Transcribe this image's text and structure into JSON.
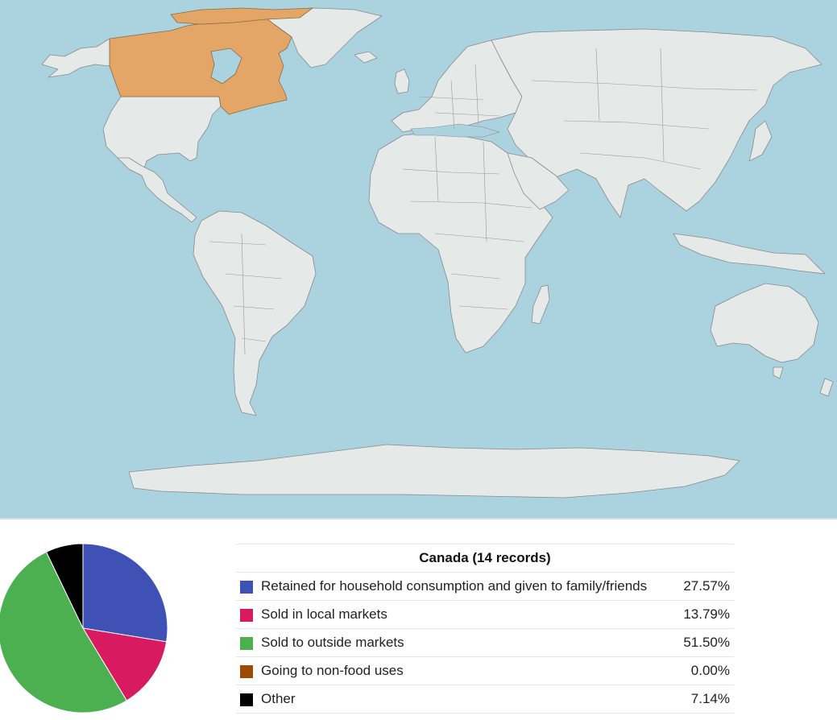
{
  "map": {
    "colors": {
      "ocean": "#aad3df",
      "land": "#e5e9e8",
      "border": "#8a8a8a",
      "highlight": "#e3a666"
    },
    "highlighted_country": "Canada"
  },
  "summary": {
    "title": "Canada (14 records)",
    "rows": [
      {
        "label": "Retained for household consumption and given to family/friends",
        "percent": "27.57%",
        "value": 27.57,
        "color": "#3f51b5"
      },
      {
        "label": "Sold in local markets",
        "percent": "13.79%",
        "value": 13.79,
        "color": "#d81b60"
      },
      {
        "label": "Sold to outside markets",
        "percent": "51.50%",
        "value": 51.5,
        "color": "#4caf50"
      },
      {
        "label": "Going to non-food uses",
        "percent": "0.00%",
        "value": 0.0,
        "color": "#9c4a00"
      },
      {
        "label": "Other",
        "percent": "7.14%",
        "value": 7.14,
        "color": "#000000"
      }
    ]
  }
}
